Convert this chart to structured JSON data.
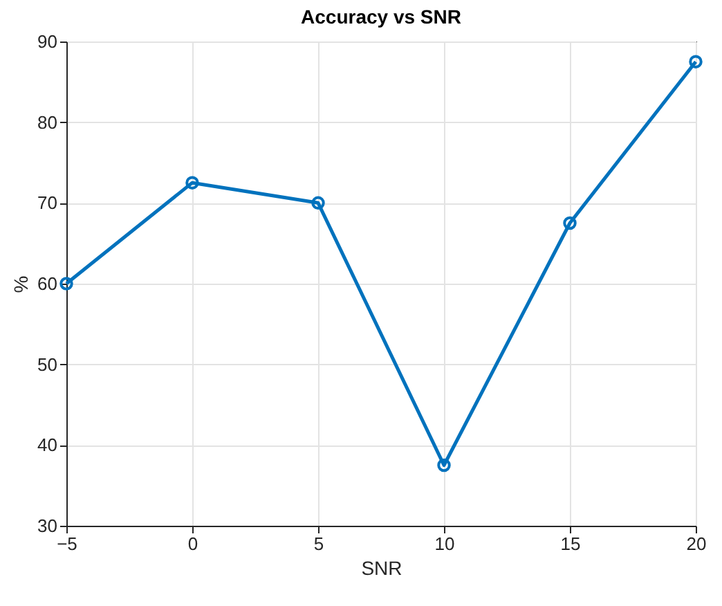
{
  "chart_data": {
    "type": "line",
    "title": "Accuracy vs SNR",
    "xlabel": "SNR",
    "ylabel": "%",
    "x": [
      -5,
      0,
      5,
      10,
      15,
      20
    ],
    "series": [
      {
        "color": "#0072bd",
        "values": [
          60,
          72.5,
          70,
          37.5,
          67.5,
          87.5
        ]
      }
    ],
    "xlim": [
      -5,
      20
    ],
    "xticks": [
      -5,
      0,
      5,
      10,
      15,
      20
    ],
    "ylim": [
      30,
      90
    ],
    "yticks": [
      30,
      40,
      50,
      60,
      70,
      80,
      90
    ],
    "grid": true,
    "marker": "circle",
    "line_style": "solid"
  }
}
